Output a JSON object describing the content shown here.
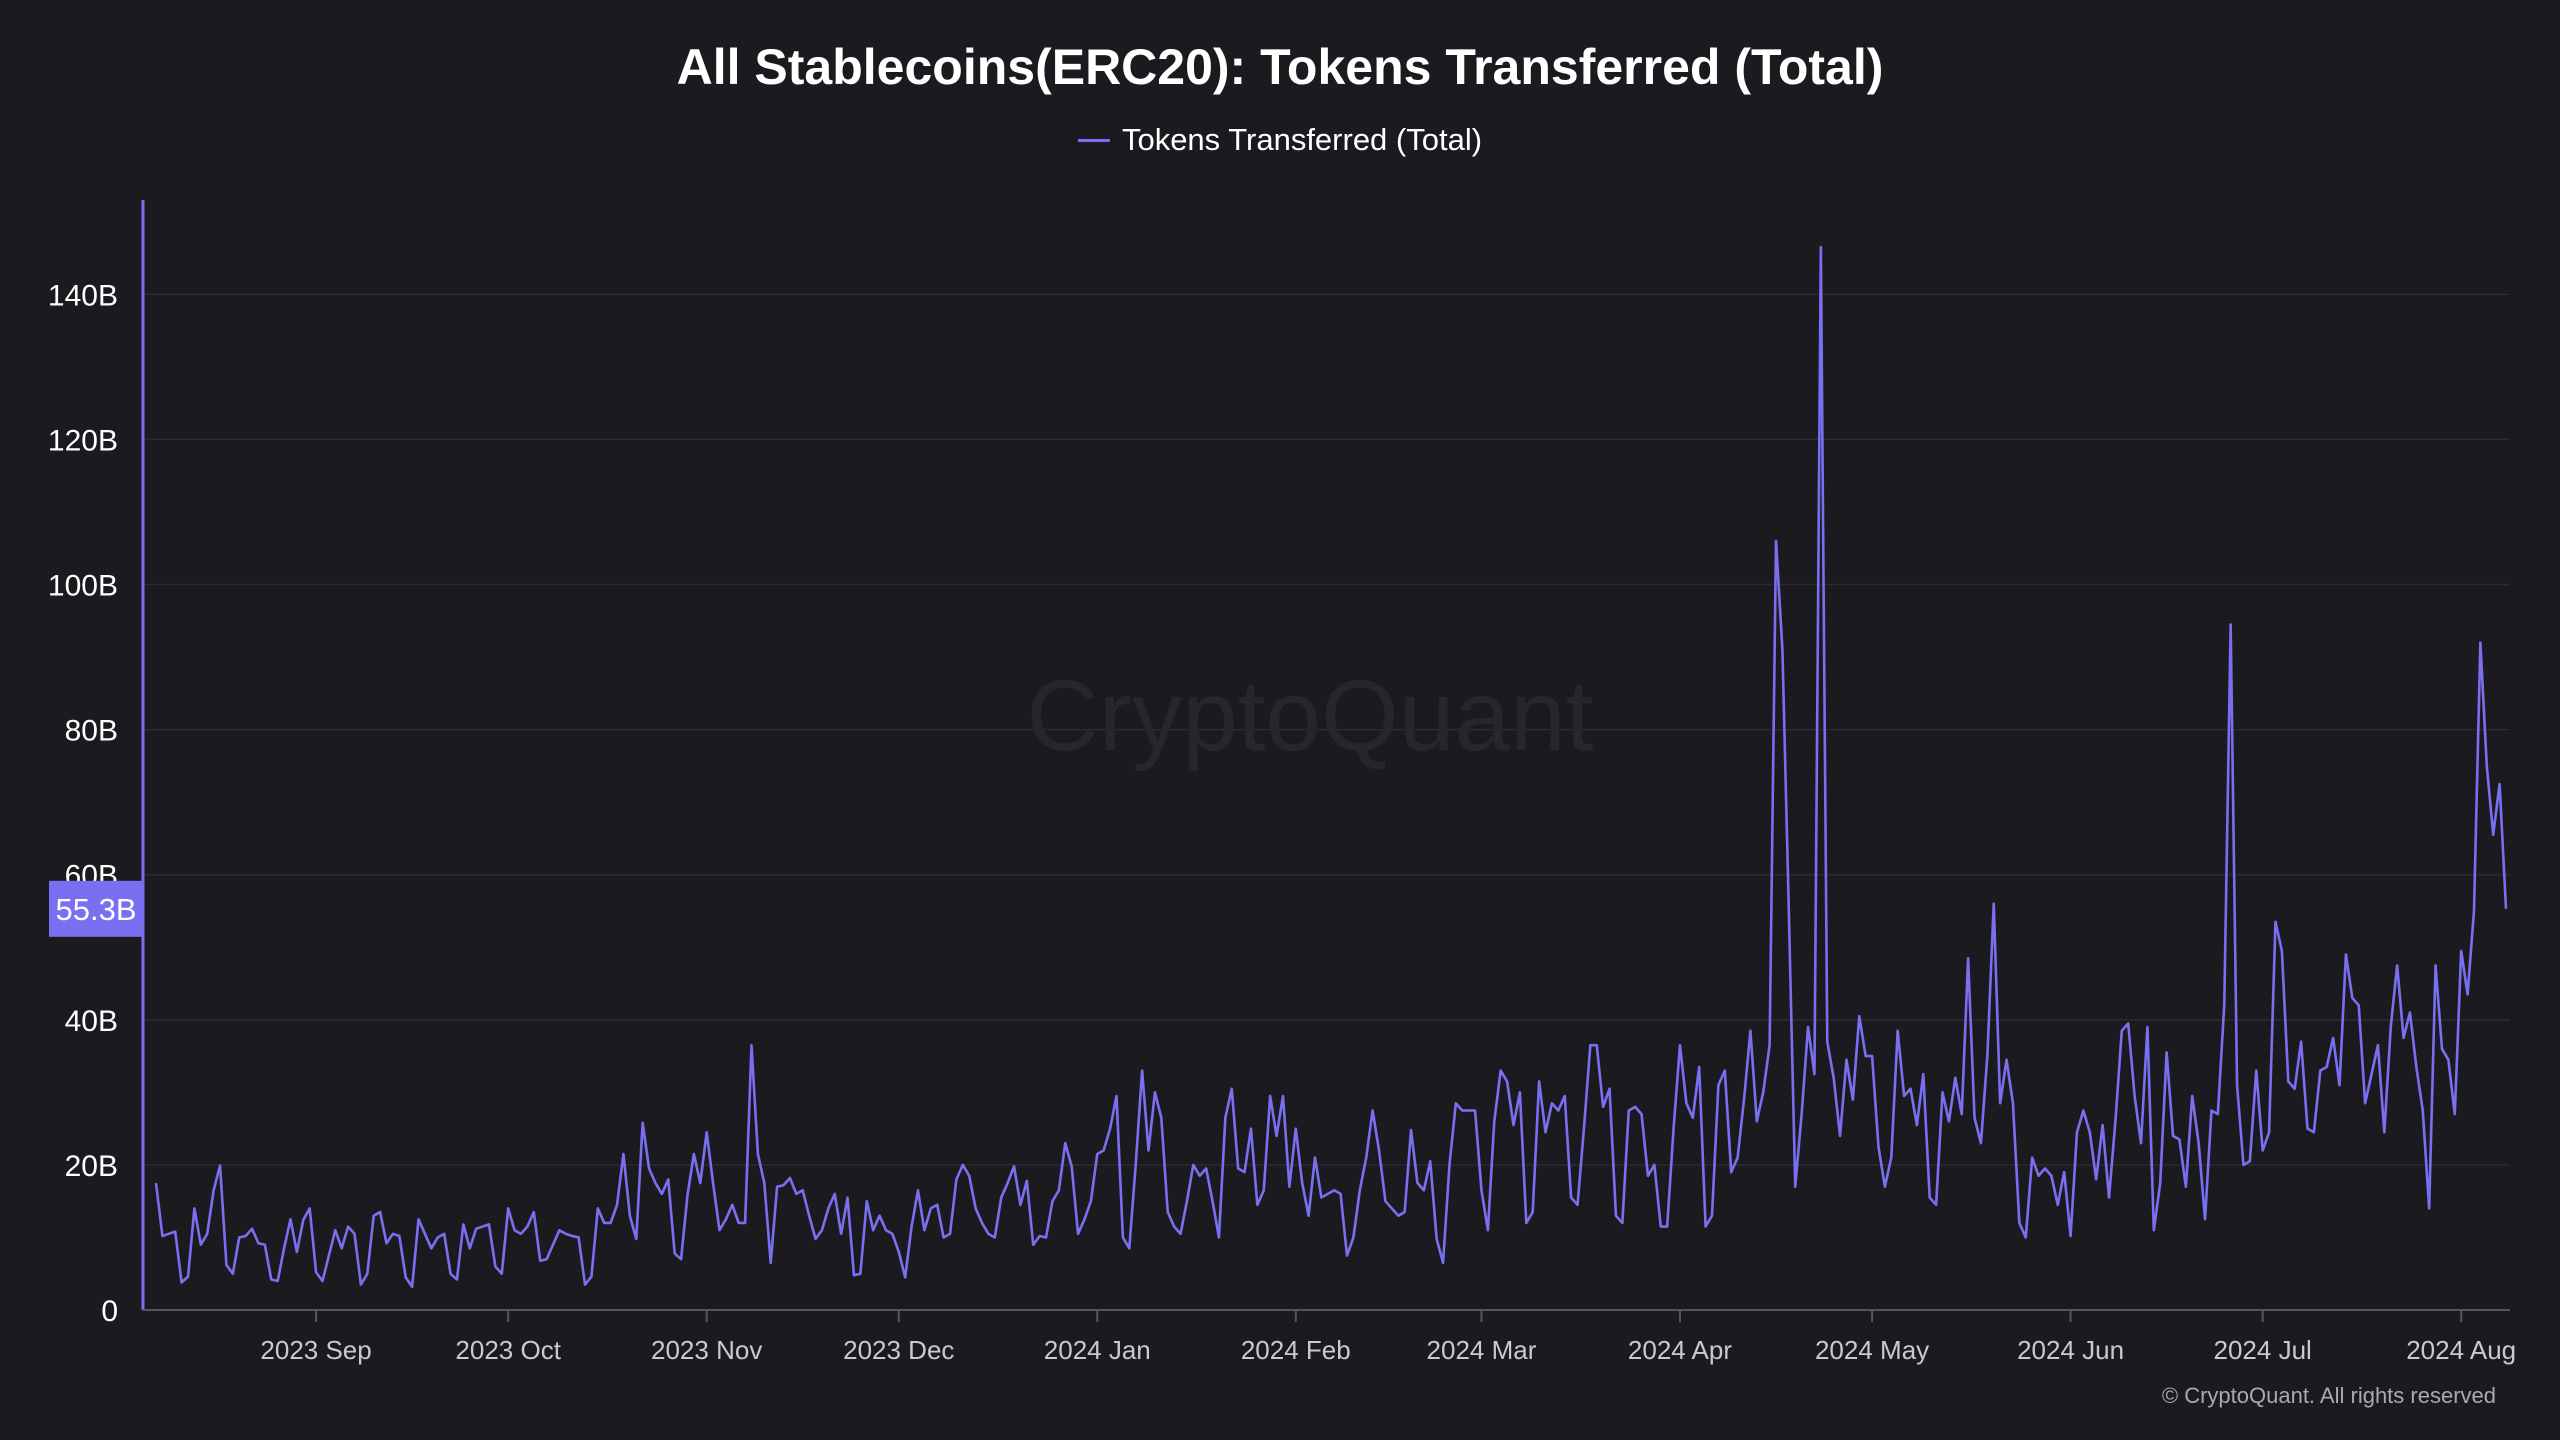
{
  "chart_data": {
    "type": "line",
    "title": "All Stablecoins(ERC20): Tokens Transferred (Total)",
    "legend_position": "top-center",
    "xlabel": "",
    "ylabel": "",
    "grid": true,
    "ylim": [
      0,
      153
    ],
    "y_unit": "billions",
    "yticks": [
      {
        "value": 0,
        "label": "0"
      },
      {
        "value": 20,
        "label": "20B"
      },
      {
        "value": 40,
        "label": "40B"
      },
      {
        "value": 60,
        "label": "60B"
      },
      {
        "value": 80,
        "label": "80B"
      },
      {
        "value": 100,
        "label": "100B"
      },
      {
        "value": 120,
        "label": "120B"
      },
      {
        "value": 140,
        "label": "140B"
      }
    ],
    "x_start": "2023-08-07",
    "x_end": "2024-08-10",
    "x_step_days": 1,
    "xticks": [
      {
        "label": "2023 Sep",
        "day": 25
      },
      {
        "label": "2023 Oct",
        "day": 55
      },
      {
        "label": "2023 Nov",
        "day": 86
      },
      {
        "label": "2023 Dec",
        "day": 116
      },
      {
        "label": "2024 Jan",
        "day": 147
      },
      {
        "label": "2024 Feb",
        "day": 178
      },
      {
        "label": "2024 Mar",
        "day": 207
      },
      {
        "label": "2024 Apr",
        "day": 238
      },
      {
        "label": "2024 May",
        "day": 268
      },
      {
        "label": "2024 Jun",
        "day": 299
      },
      {
        "label": "2024 Jul",
        "day": 329
      },
      {
        "label": "2024 Aug",
        "day": 360
      }
    ],
    "last_value_label": "55.3B",
    "series": [
      {
        "name": "Tokens Transferred (Total)",
        "color": "#7a6ff0",
        "values": [
          17.5,
          10.2,
          10.5,
          10.8,
          3.8,
          4.6,
          14.0,
          9.0,
          10.5,
          16.5,
          19.9,
          6.2,
          5.0,
          10.0,
          10.2,
          11.2,
          9.2,
          9.0,
          4.2,
          4.0,
          8.5,
          12.5,
          8.0,
          12.4,
          14.0,
          5.2,
          4.0,
          7.5,
          11.0,
          8.5,
          11.5,
          10.5,
          3.5,
          5.0,
          13.0,
          13.5,
          9.2,
          10.5,
          10.2,
          4.5,
          3.2,
          12.5,
          10.5,
          8.5,
          10.0,
          10.5,
          5.0,
          4.2,
          11.8,
          8.5,
          11.2,
          11.5,
          11.8,
          6.0,
          5.0,
          14.0,
          11.0,
          10.5,
          11.5,
          13.5,
          6.8,
          7.0,
          9.0,
          11.0,
          10.5,
          10.2,
          10.0,
          3.5,
          4.6,
          14.0,
          12.0,
          12.0,
          14.5,
          21.5,
          13.0,
          9.8,
          25.8,
          19.5,
          17.5,
          16.0,
          18.0,
          7.8,
          7.0,
          15.8,
          21.5,
          17.5,
          24.5,
          17.5,
          11.0,
          12.5,
          14.5,
          12.0,
          12.0,
          36.5,
          21.5,
          17.5,
          6.5,
          17.0,
          17.2,
          18.2,
          16.0,
          16.5,
          13.0,
          9.8,
          11.0,
          14.0,
          16.0,
          10.5,
          15.5,
          4.8,
          5.0,
          15.0,
          11.0,
          13.0,
          11.0,
          10.5,
          8.0,
          4.5,
          11.5,
          16.5,
          11.0,
          14.0,
          14.5,
          10.0,
          10.5,
          18.0,
          20.0,
          18.5,
          14.0,
          12.0,
          10.5,
          10.0,
          15.5,
          17.5,
          19.8,
          14.5,
          17.8,
          9.0,
          10.2,
          10.0,
          15.0,
          16.5,
          23.0,
          19.8,
          10.5,
          12.5,
          15.0,
          21.5,
          22.0,
          25.0,
          29.5,
          10.0,
          8.5,
          20.0,
          33.0,
          22.0,
          30.0,
          26.5,
          13.5,
          11.5,
          10.5,
          15.0,
          20.0,
          18.5,
          19.5,
          15.0,
          10.0,
          26.5,
          30.5,
          19.5,
          19.0,
          25.0,
          14.5,
          16.5,
          29.5,
          24.0,
          29.5,
          17.0,
          25.0,
          17.5,
          13.0,
          21.0,
          15.5,
          16.0,
          16.5,
          16.0,
          7.5,
          10.0,
          16.5,
          21.0,
          27.5,
          22.0,
          15.0,
          14.0,
          13.0,
          13.5,
          24.8,
          17.5,
          16.5,
          20.5,
          9.8,
          6.5,
          20.0,
          28.5,
          27.5,
          27.5,
          27.5,
          16.5,
          11.0,
          26.0,
          33.0,
          31.5,
          25.5,
          30.0,
          12.0,
          13.5,
          31.5,
          24.5,
          28.5,
          27.5,
          29.5,
          15.5,
          14.5,
          25.0,
          36.5,
          36.5,
          28.0,
          30.5,
          13.0,
          12.0,
          27.5,
          28.0,
          27.0,
          18.5,
          20.0,
          11.5,
          11.5,
          25.0,
          36.5,
          28.5,
          26.5,
          33.5,
          11.5,
          13.0,
          31.0,
          33.0,
          19.0,
          21.0,
          29.0,
          38.5,
          26.0,
          30.0,
          36.5,
          106.0,
          91.0,
          55.0,
          17.0,
          27.0,
          39.0,
          32.5,
          146.5,
          37.0,
          32.0,
          24.0,
          34.5,
          29.0,
          40.5,
          35.0,
          35.0,
          22.5,
          17.0,
          21.0,
          38.5,
          29.5,
          30.5,
          25.5,
          32.5,
          15.5,
          14.5,
          30.0,
          26.0,
          32.0,
          27.0,
          48.5,
          26.5,
          23.0,
          35.0,
          56.0,
          28.5,
          34.5,
          28.5,
          12.0,
          10.0,
          21.0,
          18.5,
          19.5,
          18.5,
          14.5,
          19.0,
          10.2,
          24.5,
          27.5,
          24.5,
          18.0,
          25.5,
          15.5,
          26.0,
          38.5,
          39.5,
          29.5,
          23.0,
          39.0,
          11.0,
          17.5,
          35.5,
          24.0,
          23.5,
          17.0,
          29.5,
          23.0,
          12.5,
          27.5,
          27.0,
          42.0,
          94.5,
          31.0,
          20.0,
          20.5,
          33.0,
          22.0,
          24.5,
          53.5,
          49.5,
          31.5,
          30.5,
          37.0,
          25.0,
          24.5,
          33.0,
          33.5,
          37.5,
          31.0,
          49.0,
          43.0,
          42.0,
          28.5,
          32.5,
          36.5,
          24.5,
          39.0,
          47.5,
          37.5,
          41.0,
          33.5,
          27.5,
          14.0,
          47.5,
          36.0,
          34.5,
          27.0,
          49.5,
          43.5,
          55.0,
          92.0,
          75.0,
          65.5,
          72.5,
          55.3
        ]
      }
    ]
  },
  "watermark": "CryptoQuant",
  "credit": "© CryptoQuant. All rights reserved"
}
